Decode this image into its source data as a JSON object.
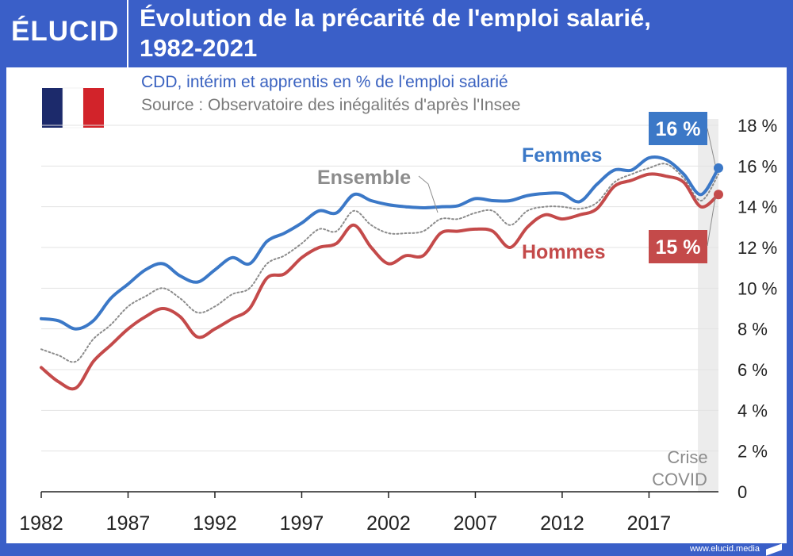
{
  "brand": {
    "logo": "ÉLUCID",
    "url": "www.elucid.media"
  },
  "header": {
    "title_line1": "Évolution de la précarité de l'emploi salarié,",
    "title_line2": "1982-2021"
  },
  "subtitle": "CDD, intérim et apprentis en % de l'emploi salarié",
  "source": "Source : Observatoire des inégalités d'après l'Insee",
  "colors": {
    "header": "#3a5fc8",
    "femmes": "#3b78c7",
    "hommes": "#c44a4a",
    "ensemble": "#8c8c8c",
    "covid_band": "#ececec",
    "subtitle": "#3a62c0",
    "source": "#7a7a7a"
  },
  "chart_data": {
    "type": "line",
    "x_label": "",
    "y_label": "",
    "xlim": [
      1982,
      2021
    ],
    "ylim": [
      0,
      18
    ],
    "x_ticks": [
      1982,
      1987,
      1992,
      1997,
      2002,
      2007,
      2012,
      2017
    ],
    "y_ticks": [
      {
        "value": 0,
        "label": "0"
      },
      {
        "value": 2,
        "label": "2 %"
      },
      {
        "value": 4,
        "label": "4 %"
      },
      {
        "value": 6,
        "label": "6 %"
      },
      {
        "value": 8,
        "label": "8 %"
      },
      {
        "value": 10,
        "label": "10 %"
      },
      {
        "value": 12,
        "label": "12 %"
      },
      {
        "value": 14,
        "label": "14 %"
      },
      {
        "value": 16,
        "label": "16 %"
      },
      {
        "value": 18,
        "label": "18 %"
      }
    ],
    "grid": true,
    "x": [
      1982,
      1983,
      1984,
      1985,
      1986,
      1987,
      1988,
      1989,
      1990,
      1991,
      1992,
      1993,
      1994,
      1995,
      1996,
      1997,
      1998,
      1999,
      2000,
      2001,
      2002,
      2003,
      2004,
      2005,
      2006,
      2007,
      2008,
      2009,
      2010,
      2011,
      2012,
      2013,
      2014,
      2015,
      2016,
      2017,
      2018,
      2019,
      2020,
      2021
    ],
    "series": [
      {
        "name": "Femmes",
        "style": "solid",
        "color": "#3b78c7",
        "values": [
          8.5,
          8.4,
          8.0,
          8.4,
          9.5,
          10.2,
          10.9,
          11.2,
          10.6,
          10.3,
          10.9,
          11.5,
          11.2,
          12.3,
          12.7,
          13.2,
          13.8,
          13.7,
          14.6,
          14.3,
          14.1,
          14.0,
          13.95,
          14.0,
          14.05,
          14.4,
          14.3,
          14.3,
          14.55,
          14.65,
          14.65,
          14.25,
          15.1,
          15.8,
          15.8,
          16.4,
          16.3,
          15.6,
          14.6,
          15.9
        ]
      },
      {
        "name": "Ensemble",
        "style": "dotted",
        "color": "#8c8c8c",
        "values": [
          7.0,
          6.7,
          6.4,
          7.5,
          8.2,
          9.1,
          9.6,
          10.0,
          9.5,
          8.8,
          9.1,
          9.7,
          10.0,
          11.2,
          11.6,
          12.2,
          12.9,
          12.8,
          13.8,
          13.1,
          12.7,
          12.7,
          12.8,
          13.4,
          13.4,
          13.7,
          13.8,
          13.1,
          13.8,
          14.0,
          14.0,
          13.9,
          14.2,
          15.2,
          15.6,
          15.9,
          16.1,
          15.4,
          14.3,
          15.6
        ]
      },
      {
        "name": "Hommes",
        "style": "solid",
        "color": "#c44a4a",
        "values": [
          6.1,
          5.4,
          5.1,
          6.4,
          7.2,
          8.0,
          8.6,
          9.0,
          8.6,
          7.6,
          8.0,
          8.5,
          9.0,
          10.5,
          10.7,
          11.5,
          12.0,
          12.2,
          13.1,
          12.0,
          11.2,
          11.6,
          11.6,
          12.7,
          12.8,
          12.9,
          12.8,
          12.0,
          13.0,
          13.6,
          13.4,
          13.6,
          13.9,
          15.0,
          15.3,
          15.6,
          15.5,
          15.2,
          14.0,
          14.6
        ]
      }
    ],
    "annotations": [
      {
        "text": "Femmes",
        "color": "#3b78c7"
      },
      {
        "text": "Ensemble",
        "color": "#8c8c8c"
      },
      {
        "text": "Hommes",
        "color": "#c44a4a"
      },
      {
        "text": "16 %",
        "series": "Femmes",
        "color": "#3b78c7"
      },
      {
        "text": "15 %",
        "series": "Hommes",
        "color": "#c44a4a"
      }
    ],
    "shaded_region": {
      "x_start": 2020,
      "x_end": 2021,
      "label_line1": "Crise",
      "label_line2": "COVID"
    }
  }
}
